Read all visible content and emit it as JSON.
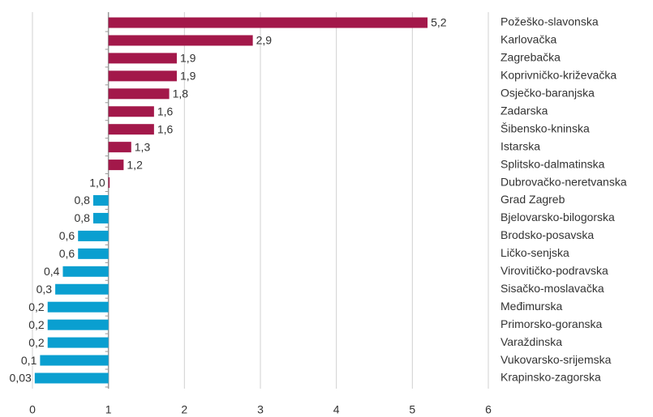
{
  "chart_data": {
    "type": "bar",
    "orientation": "horizontal",
    "baseline": 1,
    "color_above": "#a3184a",
    "color_below": "#0a9fd0",
    "categories": [
      "Požeško-slavonska",
      "Karlovačka",
      "Zagrebačka",
      "Koprivničko-križevačka",
      "Osječko-baranjska",
      "Zadarska",
      "Šibensko-kninska",
      "Istarska",
      "Splitsko-dalmatinska",
      "Dubrovačko-neretvanska",
      "Grad Zagreb",
      "Bjelovarsko-bilogorska",
      "Brodsko-posavska",
      "Ličko-senjska",
      "Virovitičko-podravska",
      "Sisačko-moslavačka",
      "Međimurska",
      "Primorsko-goranska",
      "Varaždinska",
      "Vukovarsko-srijemska",
      "Krapinsko-zagorska"
    ],
    "values": [
      5.2,
      2.9,
      1.9,
      1.9,
      1.8,
      1.6,
      1.6,
      1.3,
      1.2,
      1.0,
      0.8,
      0.8,
      0.6,
      0.6,
      0.4,
      0.3,
      0.2,
      0.2,
      0.2,
      0.1,
      0.03
    ],
    "value_labels": [
      "5,2",
      "2,9",
      "1,9",
      "1,9",
      "1,8",
      "1,6",
      "1,6",
      "1,3",
      "1,2",
      "1,0",
      "0,8",
      "0,8",
      "0,6",
      "0,6",
      "0,4",
      "0,3",
      "0,2",
      "0,2",
      "0,2",
      "0,1",
      "0,03"
    ],
    "xlim": [
      0,
      6
    ],
    "xticks": [
      0,
      1,
      2,
      3,
      4,
      5,
      6
    ],
    "grid": true
  }
}
